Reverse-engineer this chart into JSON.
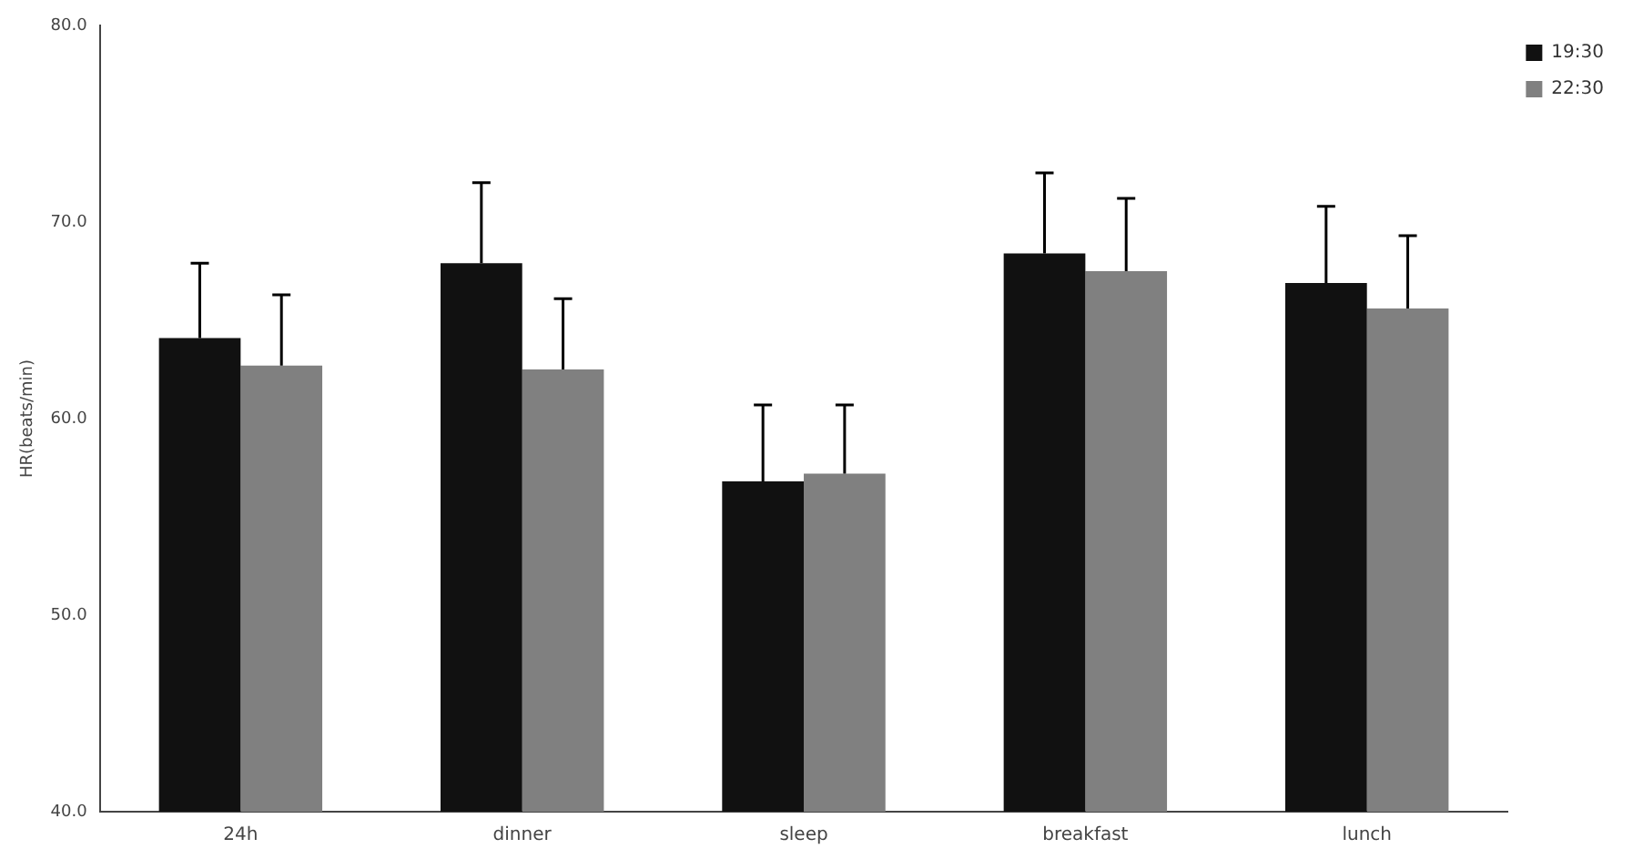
{
  "chart_data": {
    "type": "bar",
    "ylabel": "HR(beats/min)",
    "categories": [
      "24h",
      "dinner",
      "sleep",
      "breakfast",
      "lunch"
    ],
    "series": [
      {
        "name": "19:30",
        "color": "#111111",
        "values": [
          64.1,
          67.9,
          56.8,
          68.4,
          66.9
        ],
        "errors": [
          [
            64.1,
            67.9
          ],
          [
            67.9,
            72.0
          ],
          [
            56.8,
            60.7
          ],
          [
            68.4,
            72.5
          ],
          [
            66.9,
            70.8
          ]
        ]
      },
      {
        "name": "22:30",
        "color": "#808080",
        "values": [
          62.7,
          62.5,
          57.2,
          67.5,
          65.6
        ],
        "errors": [
          [
            62.7,
            66.3
          ],
          [
            62.5,
            66.1
          ],
          [
            57.2,
            60.7
          ],
          [
            67.5,
            71.2
          ],
          [
            65.6,
            69.3
          ]
        ]
      }
    ],
    "ylim": [
      40,
      80
    ],
    "yticks": [
      {
        "value": 40,
        "label": "40.0"
      },
      {
        "value": 50,
        "label": "50.0"
      },
      {
        "value": 60,
        "label": "60.0"
      },
      {
        "value": 70,
        "label": "70.0"
      },
      {
        "value": 80,
        "label": "80.0"
      }
    ],
    "grid": false,
    "legend": "top right"
  }
}
